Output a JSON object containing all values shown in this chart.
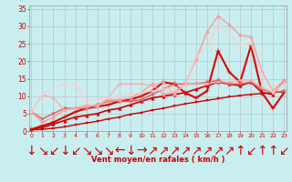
{
  "xlabel": "Vent moyen/en rafales ( km/h )",
  "bg_color": "#c8eef0",
  "grid_color": "#b0b0b0",
  "x_ticks": [
    0,
    1,
    2,
    3,
    4,
    5,
    6,
    7,
    8,
    9,
    10,
    11,
    12,
    13,
    14,
    15,
    16,
    17,
    18,
    19,
    20,
    21,
    22,
    23
  ],
  "y_ticks": [
    0,
    5,
    10,
    15,
    20,
    25,
    30,
    35
  ],
  "xlim": [
    -0.2,
    23.2
  ],
  "ylim": [
    0,
    36
  ],
  "lines": [
    {
      "x": [
        0,
        1,
        2,
        3,
        4,
        5,
        6,
        7,
        8,
        9,
        10,
        11,
        12,
        13,
        14,
        15,
        16,
        17,
        18,
        19,
        20,
        21,
        22,
        23
      ],
      "y": [
        0.3,
        0.5,
        0.8,
        1.2,
        1.8,
        2.3,
        2.8,
        3.5,
        4.0,
        4.8,
        5.3,
        6.0,
        6.5,
        7.2,
        7.8,
        8.3,
        8.8,
        9.3,
        9.8,
        10.2,
        10.5,
        10.8,
        11.0,
        11.3
      ],
      "color": "#cc0000",
      "lw": 1.0,
      "marker": "s",
      "ms": 1.8,
      "alpha": 1.0
    },
    {
      "x": [
        0,
        1,
        2,
        3,
        4,
        5,
        6,
        7,
        8,
        9,
        10,
        11,
        12,
        13,
        14,
        15,
        16,
        17,
        18,
        19,
        20,
        21,
        22,
        23
      ],
      "y": [
        0.5,
        1.0,
        2.0,
        3.0,
        4.0,
        4.5,
        5.0,
        6.0,
        6.5,
        7.5,
        8.5,
        9.5,
        10.0,
        10.5,
        11.0,
        12.0,
        13.0,
        14.0,
        13.5,
        13.0,
        14.0,
        11.0,
        10.5,
        14.5
      ],
      "color": "#cc0000",
      "lw": 1.2,
      "marker": "^",
      "ms": 2.5,
      "alpha": 1.0
    },
    {
      "x": [
        0,
        1,
        2,
        3,
        4,
        5,
        6,
        7,
        8,
        9,
        10,
        11,
        12,
        13,
        14,
        15,
        16,
        17,
        18,
        19,
        20,
        21,
        22,
        23
      ],
      "y": [
        0.5,
        1.5,
        2.5,
        4.0,
        5.5,
        6.5,
        7.0,
        7.5,
        8.5,
        9.0,
        10.0,
        11.5,
        14.0,
        13.5,
        11.0,
        9.5,
        11.5,
        23.0,
        17.0,
        14.0,
        24.5,
        11.0,
        6.5,
        11.0
      ],
      "color": "#dd0000",
      "lw": 1.5,
      "marker": "+",
      "ms": 4,
      "alpha": 1.0
    },
    {
      "x": [
        0,
        1,
        2,
        3,
        4,
        5,
        6,
        7,
        8,
        9,
        10,
        11,
        12,
        13,
        14,
        15,
        16,
        17,
        18,
        19,
        20,
        21,
        22,
        23
      ],
      "y": [
        5.5,
        3.5,
        5.0,
        6.5,
        6.5,
        6.5,
        7.5,
        8.5,
        8.5,
        8.5,
        9.0,
        10.5,
        12.0,
        13.5,
        13.5,
        13.5,
        14.0,
        14.5,
        13.5,
        13.5,
        14.0,
        12.0,
        11.0,
        11.5
      ],
      "color": "#e06060",
      "lw": 1.2,
      "marker": "v",
      "ms": 2.5,
      "alpha": 0.9
    },
    {
      "comment": "light pink big peaks - x=15~20.5, x=16~28.5, x=17~33, x=18~30.5",
      "x": [
        0,
        1,
        2,
        3,
        4,
        5,
        6,
        7,
        8,
        9,
        10,
        11,
        12,
        13,
        14,
        15,
        16,
        17,
        18,
        19,
        20,
        21,
        22,
        23
      ],
      "y": [
        5.5,
        2.5,
        4.0,
        6.0,
        6.5,
        7.0,
        7.5,
        9.0,
        9.0,
        9.5,
        11.0,
        13.5,
        10.5,
        11.0,
        13.5,
        20.5,
        28.5,
        33.0,
        30.5,
        27.5,
        27.0,
        17.0,
        11.5,
        14.5
      ],
      "color": "#ff9999",
      "lw": 1.2,
      "marker": "D",
      "ms": 2.0,
      "alpha": 0.85
    },
    {
      "x": [
        0,
        1,
        2,
        3,
        4,
        5,
        6,
        7,
        8,
        9,
        10,
        11,
        12,
        13,
        14,
        15,
        16,
        17,
        18,
        19,
        20,
        21,
        22,
        23
      ],
      "y": [
        5.5,
        10.5,
        9.5,
        6.0,
        6.5,
        7.5,
        7.0,
        9.5,
        13.5,
        13.5,
        13.5,
        13.0,
        14.0,
        10.5,
        13.5,
        13.5,
        13.5,
        14.0,
        14.0,
        14.5,
        14.5,
        12.5,
        11.0,
        14.0
      ],
      "color": "#ffaaaa",
      "lw": 1.2,
      "marker": "o",
      "ms": 2.0,
      "alpha": 0.8
    },
    {
      "x": [
        0,
        1,
        2,
        3,
        4,
        5,
        6,
        7,
        8,
        9,
        10,
        11,
        12,
        13,
        14,
        15,
        16,
        17,
        18,
        19,
        20,
        21,
        22,
        23
      ],
      "y": [
        5.5,
        10.5,
        12.5,
        13.5,
        13.5,
        8.5,
        9.0,
        9.5,
        10.0,
        10.5,
        11.0,
        11.5,
        12.0,
        12.5,
        13.0,
        21.5,
        24.0,
        30.5,
        27.5,
        25.0,
        25.0,
        16.5,
        11.0,
        13.5
      ],
      "color": "#ffcccc",
      "lw": 1.2,
      "marker": "s",
      "ms": 2.0,
      "alpha": 0.75
    }
  ],
  "arrows": [
    "↓",
    "↘",
    "↙",
    "↓",
    "↙",
    "↘",
    "↘",
    "↘",
    "←",
    "↓",
    "→",
    "↗",
    "↗",
    "↗",
    "↗",
    "↗",
    "↗",
    "↗",
    "↗",
    "↑",
    "↙",
    "↑",
    "↑",
    "↙"
  ]
}
